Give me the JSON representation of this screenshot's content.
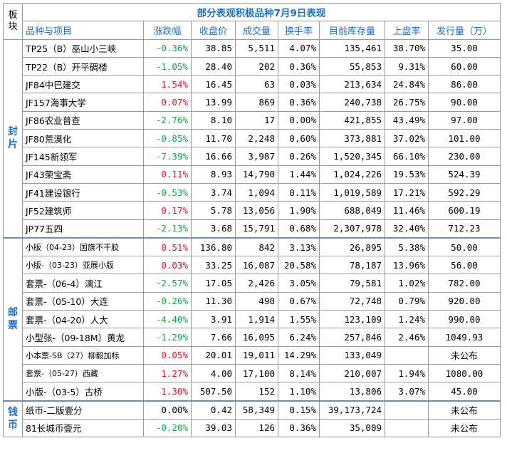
{
  "title": "部分表观积极品种7月9日表现",
  "corner_label": "板块",
  "headers": [
    "品种与项目",
    "涨跌幅",
    "收盘价",
    "成交量",
    "换手率",
    "目前库存量",
    "上盘率",
    "发行量（万）"
  ],
  "colors": {
    "up": "#e0102a",
    "down": "#11a34a",
    "header": "#1f6fbf"
  },
  "sections": [
    {
      "label": "封片",
      "rows": [
        {
          "name": "TP25（B）巫山小三峡",
          "change": "-0.36%",
          "dir": "down",
          "close": "38.85",
          "volume": "5,511",
          "turnover": "4.07%",
          "stock": "135,461",
          "listing_rate": "38.70%",
          "issue": "35.00"
        },
        {
          "name": "TP22（B）开平碉楼",
          "change": "-1.05%",
          "dir": "down",
          "close": "28.40",
          "volume": "202",
          "turnover": "0.36%",
          "stock": "55,853",
          "listing_rate": "9.31%",
          "issue": "60.00"
        },
        {
          "name": "JF84中巴建交",
          "change": "1.54%",
          "dir": "up",
          "close": "16.45",
          "volume": "63",
          "turnover": "0.03%",
          "stock": "213,634",
          "listing_rate": "24.84%",
          "issue": "86.00"
        },
        {
          "name": "JF157海事大学",
          "change": "0.07%",
          "dir": "up",
          "close": "13.99",
          "volume": "869",
          "turnover": "0.36%",
          "stock": "240,738",
          "listing_rate": "26.75%",
          "issue": "90.00"
        },
        {
          "name": "JF86农业普查",
          "change": "-2.76%",
          "dir": "down",
          "close": "8.10",
          "volume": "17",
          "turnover": "0.00%",
          "stock": "421,855",
          "listing_rate": "43.49%",
          "issue": "97.00"
        },
        {
          "name": "JF80荒漠化",
          "change": "-0.85%",
          "dir": "down",
          "close": "11.70",
          "volume": "2,248",
          "turnover": "0.60%",
          "stock": "373,881",
          "listing_rate": "37.02%",
          "issue": "101.00"
        },
        {
          "name": "JF145新领军",
          "change": "-7.39%",
          "dir": "down",
          "close": "16.66",
          "volume": "3,987",
          "turnover": "0.26%",
          "stock": "1,520,345",
          "listing_rate": "66.10%",
          "issue": "230.00"
        },
        {
          "name": "JF43荣宝斋",
          "change": "0.11%",
          "dir": "up",
          "close": "8.93",
          "volume": "14,790",
          "turnover": "1.44%",
          "stock": "1,024,226",
          "listing_rate": "19.53%",
          "issue": "524.39"
        },
        {
          "name": "JF41建设银行",
          "change": "-0.53%",
          "dir": "down",
          "close": "3.74",
          "volume": "1,094",
          "turnover": "0.11%",
          "stock": "1,019,589",
          "listing_rate": "17.21%",
          "issue": "592.29"
        },
        {
          "name": "JF52建筑师",
          "change": "0.17%",
          "dir": "up",
          "close": "5.78",
          "volume": "13,056",
          "turnover": "1.90%",
          "stock": "688,049",
          "listing_rate": "11.46%",
          "issue": "600.19"
        },
        {
          "name": "JP77五四",
          "change": "-2.13%",
          "dir": "down",
          "close": "3.68",
          "volume": "15,791",
          "turnover": "0.68%",
          "stock": "2,307,978",
          "listing_rate": "32.40%",
          "issue": "712.23"
        }
      ]
    },
    {
      "label": "邮票",
      "rows": [
        {
          "name": "小版（04-23）国旗不干胶",
          "change": "0.51%",
          "dir": "up",
          "close": "136.80",
          "volume": "842",
          "turnover": "3.13%",
          "stock": "26,895",
          "listing_rate": "5.38%",
          "issue": "50.00",
          "small": true
        },
        {
          "name": "小版-（03-23）亚展小版",
          "change": "0.03%",
          "dir": "up",
          "close": "33.25",
          "volume": "16,087",
          "turnover": "20.58%",
          "stock": "78,187",
          "listing_rate": "13.96%",
          "issue": "56.00",
          "small": true
        },
        {
          "name": "套票-（06-4）漓江",
          "change": "-2.57%",
          "dir": "down",
          "close": "17.05",
          "volume": "2,426",
          "turnover": "3.05%",
          "stock": "79,581",
          "listing_rate": "1.02%",
          "issue": "782.00"
        },
        {
          "name": "套票-（05-10）大连",
          "change": "-0.26%",
          "dir": "down",
          "close": "11.30",
          "volume": "490",
          "turnover": "0.67%",
          "stock": "72,748",
          "listing_rate": "0.79%",
          "issue": "920.00"
        },
        {
          "name": "套票-（04-20）人大",
          "change": "-4.40%",
          "dir": "down",
          "close": "3.91",
          "volume": "1,914",
          "turnover": "1.55%",
          "stock": "123,109",
          "listing_rate": "1.24%",
          "issue": "990.00"
        },
        {
          "name": "小型张-（09-18M）黄龙",
          "change": "-1.29%",
          "dir": "down",
          "close": "7.66",
          "volume": "16,095",
          "turnover": "6.24%",
          "stock": "257,846",
          "listing_rate": "2.46%",
          "issue": "1049.93"
        },
        {
          "name": "小本票-SB（27）柳毅加标",
          "change": "0.05%",
          "dir": "up",
          "close": "20.01",
          "volume": "19,011",
          "turnover": "14.29%",
          "stock": "133,049",
          "listing_rate": "",
          "issue": "未公布",
          "small": true
        },
        {
          "name": "套票-（05-27）西藏",
          "change": "1.27%",
          "dir": "up",
          "close": "4.00",
          "volume": "17,100",
          "turnover": "8.14%",
          "stock": "210,007",
          "listing_rate": "1.94%",
          "issue": "1080.00",
          "small": true
        },
        {
          "name": "小版-（03-5）古桥",
          "change": "1.30%",
          "dir": "up",
          "close": "507.50",
          "volume": "152",
          "turnover": "1.10%",
          "stock": "13,806",
          "listing_rate": "3.07%",
          "issue": "45.00"
        }
      ]
    },
    {
      "label": "钱币",
      "rows": [
        {
          "name": "纸币-二版壹分",
          "change": "0.00%",
          "dir": "flat",
          "close": "0.42",
          "volume": "58,349",
          "turnover": "0.15%",
          "stock": "39,173,724",
          "listing_rate": "",
          "issue": "未公布"
        },
        {
          "name": "81长城币壹元",
          "change": "-0.20%",
          "dir": "down",
          "close": "39.03",
          "volume": "126",
          "turnover": "0.36%",
          "stock": "35,009",
          "listing_rate": "",
          "issue": "未公布"
        }
      ]
    }
  ]
}
